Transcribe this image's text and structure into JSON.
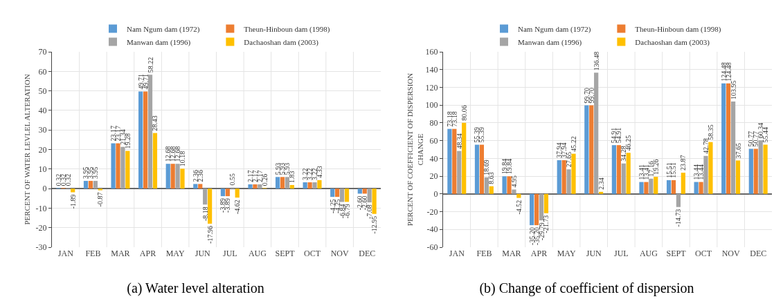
{
  "chart_data": [
    {
      "type": "bar",
      "title": "(a) Water level alteration",
      "ylabel": "PERCENT OF WATER LEVLEL ALTERATION",
      "categories": [
        "JAN",
        "FEB",
        "MAR",
        "APR",
        "MAY",
        "JUN",
        "JUL",
        "AUG",
        "SEPT",
        "OCT",
        "NOV",
        "DEC"
      ],
      "series": [
        {
          "name": "Nam Ngum dam (1972)",
          "color": "#5b9bd5",
          "values": [
            0.32,
            3.95,
            23.17,
            49.71,
            12.68,
            2.36,
            -3.89,
            2.17,
            5.93,
            3.22,
            -4.25,
            -2.6
          ],
          "value_labels": [
            "0.32",
            "3.95",
            "23.17",
            "49.71",
            "12.68",
            "2.36",
            "-3.89",
            "2.17",
            "5.93",
            "3.22",
            "-4.25",
            "-2.60"
          ]
        },
        {
          "name": "Theun-Hinboun dam (1998)",
          "color": "#ed7d31",
          "values": [
            0.32,
            3.95,
            23.17,
            49.71,
            12.68,
            2.36,
            -3.89,
            2.17,
            5.93,
            3.22,
            -4.25,
            -2.6
          ],
          "value_labels": [
            "0.32",
            "3.95",
            "23.17",
            "49.71",
            "12.68",
            "2.36",
            "-3.89",
            "2.17",
            "5.93",
            "3.22",
            "-4.25",
            "-2.60"
          ]
        },
        {
          "name": "Manwan dam (1996)",
          "color": "#a5a5a5",
          "values": [
            0.32,
            3.95,
            21.34,
            58.22,
            12.68,
            -8.18,
            0.55,
            2.17,
            5.93,
            3.22,
            -6.84,
            -7.08
          ],
          "value_labels": [
            "0.32",
            "3.95",
            "21.34",
            "58.22",
            "12.68",
            "-8.18",
            "0.55",
            "2.17",
            "5.93",
            "3.22",
            "-6.84",
            "-7.08"
          ]
        },
        {
          "name": "Dachaoshan dam (2003)",
          "color": "#ffc000",
          "values": [
            -1.89,
            -0.87,
            19.28,
            28.43,
            10.18,
            -17.96,
            -4.62,
            0.26,
            1.83,
            4.33,
            -6.79,
            -12.95
          ],
          "value_labels": [
            "-1.89",
            "-0.87",
            "19.28",
            "28.43",
            "10.18",
            "-17.96",
            "-4.62",
            "0.26",
            "1.83",
            "4.33",
            "-6.79",
            "-12.95"
          ]
        }
      ],
      "ylim": [
        -30,
        70
      ],
      "yticks": [
        -30,
        -20,
        -10,
        0,
        10,
        20,
        30,
        40,
        50,
        60,
        70
      ],
      "grid": true,
      "legend": "top"
    },
    {
      "type": "bar",
      "title": "(b) Change of coefficient of dispersion",
      "ylabel": "PERCENT OF COEFFICIENT OF DISPERSION CHANGE",
      "categories": [
        "JAN",
        "FEB",
        "MAR",
        "APR",
        "MAY",
        "JUN",
        "JUL",
        "AUG",
        "SEPT",
        "OCT",
        "NOV",
        "DEC"
      ],
      "series": [
        {
          "name": "Nam Ngum dam (1972)",
          "color": "#5b9bd5",
          "values": [
            73.18,
            55.39,
            19.84,
            -35.2,
            37.94,
            99.7,
            54.91,
            13.41,
            15.51,
            13.44,
            124.48,
            50.77
          ],
          "value_labels": [
            "73.18",
            "55.39",
            "19.84",
            "-35.20",
            "37.94",
            "99.70",
            "54.91",
            "13.41",
            "15.51",
            "13.44",
            "124.48",
            "50.77"
          ]
        },
        {
          "name": "Theun-Hinboun dam (1998)",
          "color": "#ed7d31",
          "values": [
            73.18,
            55.39,
            19.84,
            -35.2,
            37.94,
            99.7,
            54.91,
            13.41,
            15.51,
            13.44,
            124.48,
            50.77
          ],
          "value_labels": [
            "73.18",
            "55.39",
            "19.84",
            "-35.20",
            "37.94",
            "99.70",
            "54.91",
            "13.41",
            "15.51",
            "13.44",
            "124.48",
            "50.77"
          ]
        },
        {
          "name": "Manwan dam (1996)",
          "color": "#a5a5a5",
          "values": [
            48.34,
            18.69,
            4.95,
            -29.79,
            27.65,
            136.48,
            34.28,
            17.16,
            -14.73,
            42.78,
            103.95,
            60.34
          ],
          "value_labels": [
            "48.34",
            "18.69",
            "4.95",
            "-29.79",
            "27.65",
            "136.48",
            "34.28",
            "17.16",
            "-14.73",
            "42.78",
            "103.95",
            "60.34"
          ]
        },
        {
          "name": "Dachaoshan dam (2003)",
          "color": "#ffc000",
          "values": [
            80.06,
            8.63,
            -4.52,
            -21.73,
            45.22,
            2.34,
            46.25,
            19.26,
            23.87,
            58.35,
            37.65,
            55.44
          ],
          "value_labels": [
            "80.06",
            "8.63",
            "-4.52",
            "-21.73",
            "45.22",
            "2.34",
            "46.25",
            "19.26",
            "23.87",
            "58.35",
            "37.65",
            "55.44"
          ]
        }
      ],
      "ylim": [
        -60,
        160
      ],
      "yticks": [
        -60,
        -40,
        -20,
        0,
        20,
        40,
        60,
        80,
        100,
        120,
        140,
        160
      ],
      "grid": true,
      "legend": "top"
    }
  ]
}
